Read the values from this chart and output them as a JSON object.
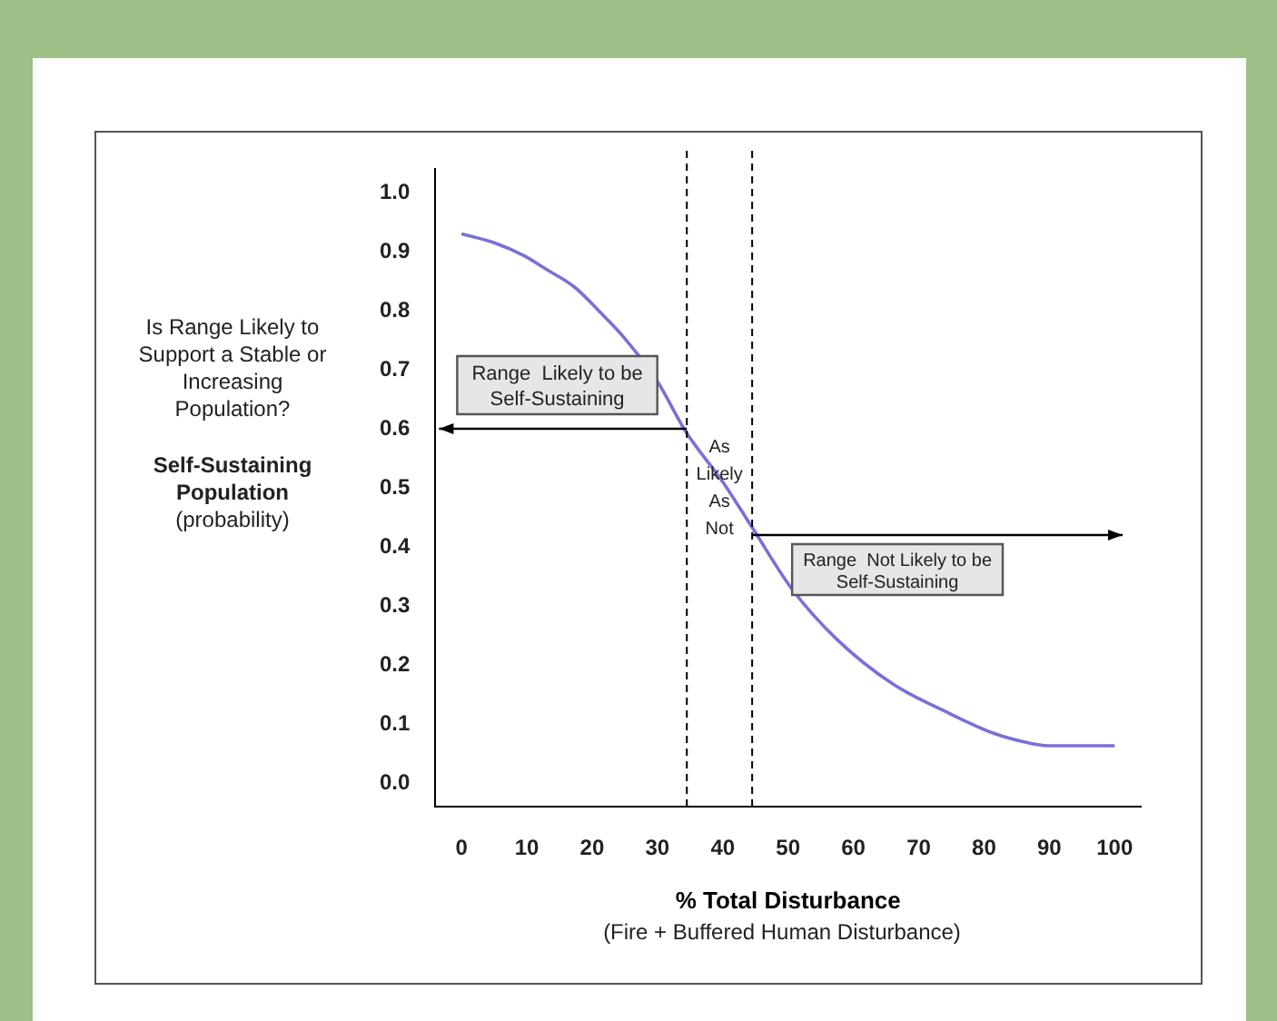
{
  "chart_data": {
    "type": "line",
    "ylabel": "Self-Sustaining Population (probability)",
    "xlabel": "% Total Disturbance",
    "x": [
      0,
      5,
      9.6,
      13,
      17.3,
      21,
      25,
      30,
      34.4,
      40,
      44.6,
      50.5,
      57.4,
      66,
      74.5,
      81.3,
      86,
      89.9,
      95,
      100
    ],
    "series": [
      {
        "color": "#7a70d6",
        "values": [
          0.93,
          0.915,
          0.893,
          0.87,
          0.84,
          0.8,
          0.753,
          0.68,
          0.594,
          0.51,
          0.431,
          0.33,
          0.244,
          0.168,
          0.119,
          0.085,
          0.07,
          0.063,
          0.063,
          0.063
        ]
      }
    ],
    "xlim": [
      -4,
      104
    ],
    "xticks": [
      0,
      10,
      20,
      30,
      40,
      50,
      60,
      70,
      80,
      90,
      100
    ],
    "ylim": [
      -0.04,
      1.04
    ],
    "yticks": [
      {
        "value": 0,
        "label": "0.0"
      },
      0.1,
      0.2,
      0.3,
      0.4,
      0.5,
      0.6,
      0.7,
      0.8,
      0.9,
      {
        "value": 1,
        "label": "1.0"
      }
    ],
    "grid": false,
    "legend": false,
    "marker": "none",
    "line_style": "solid",
    "ref_lines": [
      {
        "axis": "x",
        "value": 34.5,
        "color": "#000000",
        "line_style": "dashed"
      },
      {
        "axis": "x",
        "value": 44.5,
        "color": "#000000",
        "line_style": "dashed"
      }
    ],
    "annotations": [
      {
        "text": "Range  Likely to be Self-Sustaining",
        "x": 34.5,
        "y": 0.6
      },
      {
        "text": "Range  Not Likely to be Self-Sustaining",
        "x": 44.5,
        "y": 0.42
      },
      {
        "text": "As Likely As Not",
        "x": 39.5,
        "y": 0.5
      },
      "Is Range Likely to Support a Stable or Increasing Population?",
      "(Fire + Buffered Human Disturbance)"
    ]
  }
}
